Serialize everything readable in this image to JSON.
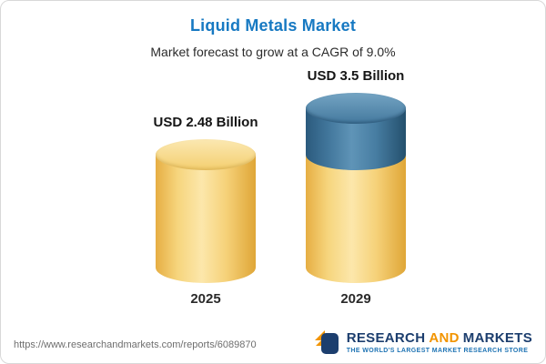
{
  "header": {
    "title": "Liquid Metals Market",
    "subtitle": "Market forecast to grow at a CAGR of 9.0%"
  },
  "chart_data": {
    "type": "bar",
    "variant": "3d-cylinder",
    "title": "Liquid Metals Market",
    "subtitle": "Market forecast to grow at a CAGR of 9.0%",
    "unit": "USD Billion",
    "cagr_pct": 9.0,
    "categories": [
      "2025",
      "2029"
    ],
    "values": [
      2.48,
      3.5
    ],
    "value_labels": [
      "USD 2.48 Billion",
      "USD 3.5 Billion"
    ],
    "ylim": [
      0,
      4
    ],
    "grid": false,
    "legend": "none",
    "bars": [
      {
        "category": "2025",
        "label": "USD 2.48 Billion",
        "total": 2.48,
        "segments": [
          {
            "value": 2.48,
            "color": "yellow"
          }
        ]
      },
      {
        "category": "2029",
        "label": "USD 3.5 Billion",
        "total": 3.5,
        "segments": [
          {
            "value": 2.48,
            "color": "yellow"
          },
          {
            "value": 1.02,
            "color": "blue"
          }
        ]
      }
    ],
    "colors": {
      "base_segment": "#f6d57d",
      "growth_segment": "#41769b",
      "title": "#1779c2"
    }
  },
  "footer": {
    "url": "https://www.researchandmarkets.com/reports/6089870",
    "logo": {
      "research": "RESEARCH",
      "and": "AND",
      "markets": "MARKETS",
      "tagline": "THE WORLD'S LARGEST MARKET RESEARCH STORE",
      "navy": "#1c3e6e",
      "orange": "#f29400"
    }
  }
}
